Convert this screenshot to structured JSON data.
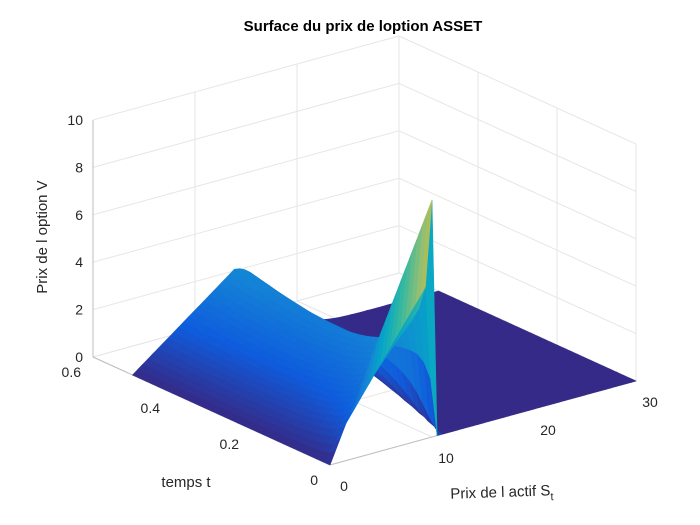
{
  "chart_data": {
    "type": "surface",
    "title": "Surface du prix de loption ASSET",
    "xlabel": "Prix de l actif S",
    "xlabel_sub": "t",
    "ylabel": "temps t",
    "zlabel": "Prix de l option V",
    "xlim": [
      0,
      30
    ],
    "ylim": [
      0,
      0.6
    ],
    "zlim": [
      0,
      10
    ],
    "x_ticks": [
      "0",
      "10",
      "20",
      "30"
    ],
    "y_ticks": [
      "0",
      "0.2",
      "0.4",
      "0.6"
    ],
    "z_ticks": [
      "0",
      "2",
      "4",
      "6",
      "8",
      "10"
    ],
    "colormap": "parula",
    "grid": true,
    "s_max_edge": 10,
    "t_range": [
      0,
      0.5
    ],
    "strike_s": 10,
    "surface_profile_at_t0": [
      {
        "s": 0,
        "v": 0
      },
      {
        "s": 10,
        "v": 10
      },
      {
        "s": 10.01,
        "v": 0
      },
      {
        "s": 30,
        "v": 0
      }
    ],
    "surface_profile_at_t05": [
      {
        "s": 0,
        "v": 0
      },
      {
        "s": 6,
        "v": 3.5
      },
      {
        "s": 10,
        "v": 5.2
      },
      {
        "s": 12,
        "v": 4.0
      },
      {
        "s": 15,
        "v": 1.6
      },
      {
        "s": 18,
        "v": 0.3
      },
      {
        "s": 22,
        "v": 0
      },
      {
        "s": 30,
        "v": 0
      }
    ]
  }
}
